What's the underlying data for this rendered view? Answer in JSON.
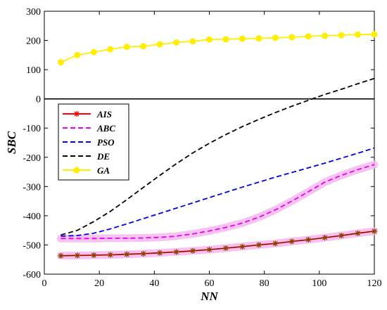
{
  "chart_data": {
    "type": "line",
    "xlabel": "NN",
    "ylabel": "SBC",
    "xlim": [
      0,
      120
    ],
    "ylim": [
      -600,
      300
    ],
    "xticks": [
      0,
      20,
      40,
      60,
      80,
      100,
      120
    ],
    "yticks": [
      -600,
      -500,
      -400,
      -300,
      -200,
      -100,
      0,
      100,
      200,
      300
    ],
    "grid": false,
    "zero_line": true,
    "legend_position": "left",
    "x": [
      6,
      12,
      18,
      24,
      30,
      36,
      42,
      48,
      54,
      60,
      66,
      72,
      78,
      84,
      90,
      96,
      102,
      108,
      114,
      120
    ],
    "series": [
      {
        "name": "AIS",
        "color": "#ff0000",
        "marker": "asterisk",
        "dash": "solid",
        "halo": true,
        "values": [
          -537,
          -536,
          -535,
          -534,
          -532,
          -530,
          -527,
          -524,
          -520,
          -516,
          -511,
          -506,
          -500,
          -495,
          -488,
          -482,
          -475,
          -468,
          -460,
          -453
        ]
      },
      {
        "name": "ABC",
        "color": "#ee00ee",
        "marker": "none",
        "dash": "dashed",
        "halo": true,
        "values": [
          -478,
          -478,
          -478,
          -477,
          -477,
          -476,
          -474,
          -470,
          -462,
          -452,
          -440,
          -425,
          -405,
          -380,
          -350,
          -318,
          -285,
          -262,
          -242,
          -225
        ]
      },
      {
        "name": "PSO",
        "color": "#0000ee",
        "marker": "none",
        "dash": "dashed",
        "halo": false,
        "values": [
          -470,
          -468,
          -460,
          -445,
          -428,
          -410,
          -392,
          -374,
          -356,
          -338,
          -320,
          -302,
          -285,
          -268,
          -252,
          -236,
          -220,
          -203,
          -186,
          -168
        ]
      },
      {
        "name": "DE",
        "color": "#000000",
        "marker": "none",
        "dash": "dashed",
        "halo": false,
        "values": [
          -466,
          -450,
          -420,
          -385,
          -345,
          -303,
          -262,
          -222,
          -185,
          -152,
          -122,
          -95,
          -70,
          -47,
          -25,
          -5,
          15,
          33,
          52,
          70
        ]
      },
      {
        "name": "GA",
        "color": "#ffee00",
        "marker": "circle",
        "dash": "solid",
        "halo": false,
        "values": [
          125,
          150,
          160,
          170,
          178,
          180,
          187,
          193,
          197,
          203,
          204,
          206,
          207,
          209,
          211,
          214,
          216,
          218,
          220,
          221
        ]
      }
    ]
  }
}
